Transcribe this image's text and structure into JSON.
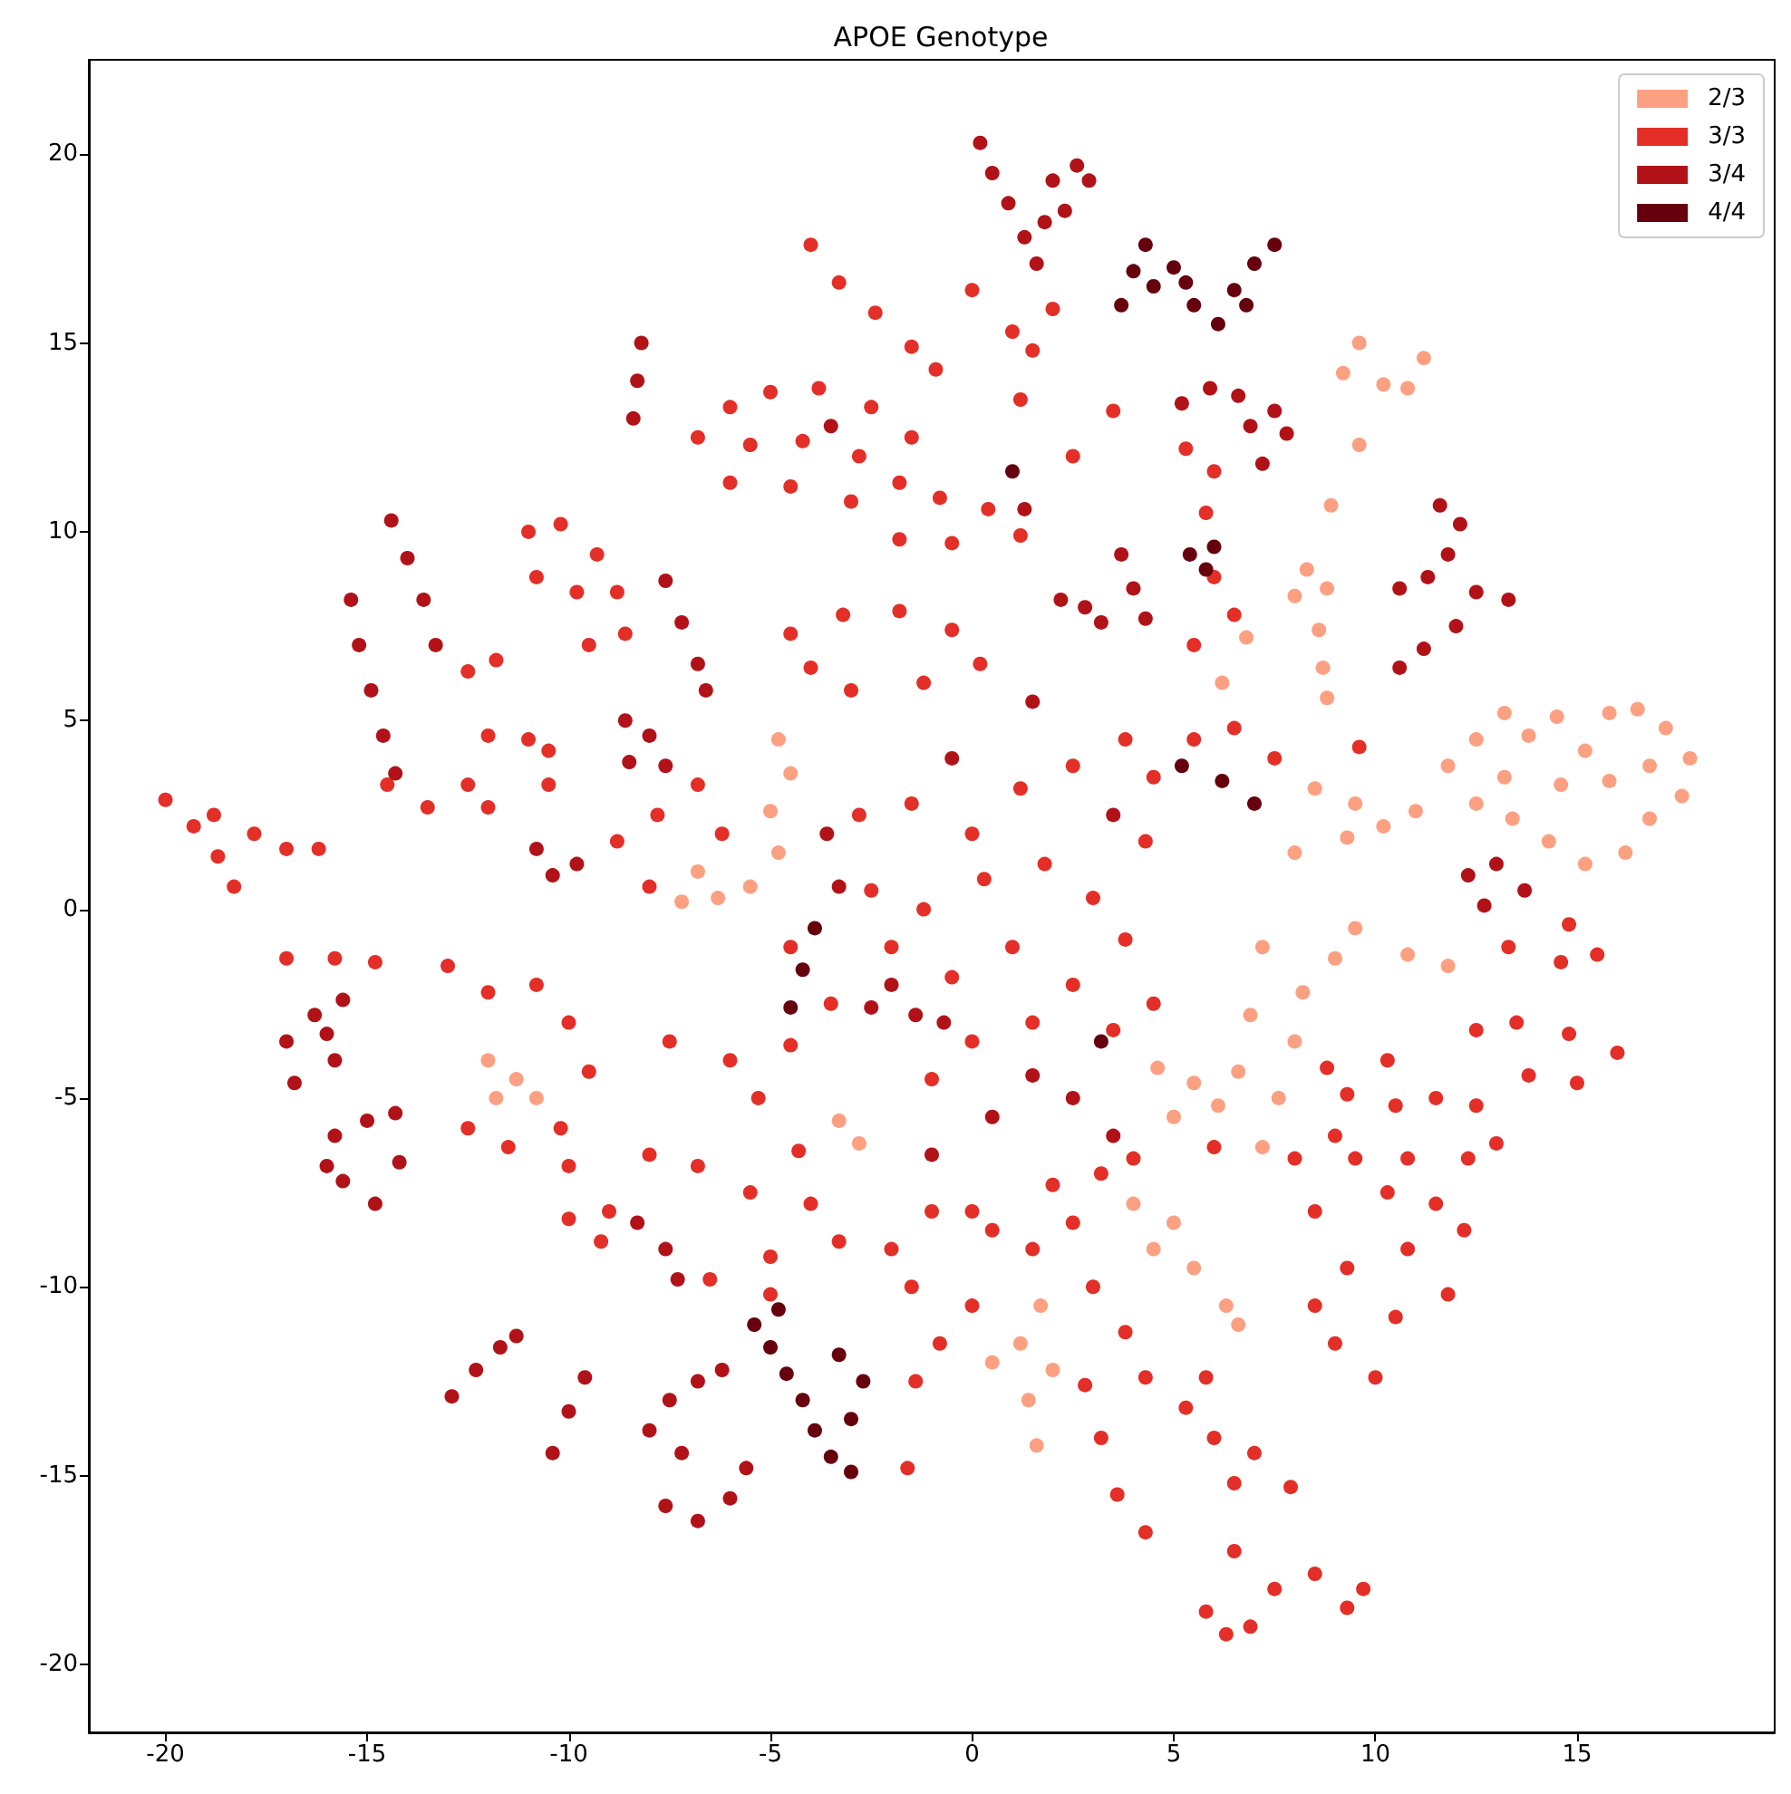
{
  "chart_data": {
    "type": "scatter",
    "title": "APOE Genotype",
    "xlim": [
      -21.9,
      19.9
    ],
    "ylim": [
      -21.8,
      22.5
    ],
    "xticks": [
      -20,
      -15,
      -10,
      -5,
      0,
      5,
      10,
      15
    ],
    "yticks": [
      -20,
      -15,
      -10,
      -5,
      0,
      5,
      10,
      15,
      20
    ],
    "grid": false,
    "legend": "top right",
    "marker": "circle",
    "series": [
      {
        "name": "2/3",
        "color": "#fca082",
        "x": [
          11.8,
          12.5,
          13.2,
          13.8,
          14.5,
          15.2,
          15.8,
          16.5,
          17.2,
          17.8,
          17.6,
          16.8,
          16.2,
          15.2,
          14.3,
          13.4,
          12.5,
          14.6,
          15.8,
          13.2,
          16.8,
          11.0,
          10.2,
          9.3,
          9.6,
          9.2,
          10.2,
          11.2,
          10.8,
          9.6,
          8.9,
          8.3,
          8.8,
          8.0,
          8.6,
          8.7,
          8.8,
          6.8,
          6.2,
          8.5,
          9.5,
          8.0,
          9.5,
          10.8,
          11.8,
          9.0,
          8.2,
          8.0,
          7.6,
          7.2,
          7.2,
          6.9,
          6.6,
          4.6,
          5.5,
          5.0,
          6.1,
          4.0,
          5.0,
          5.5,
          6.3,
          6.6,
          4.5,
          1.7,
          1.2,
          0.5,
          1.4,
          1.6,
          2.0,
          -4.8,
          -4.5,
          -5.0,
          -4.8,
          -5.5,
          -6.8,
          -6.3,
          -7.2,
          -12.0,
          -11.3,
          -10.8,
          -11.8,
          -3.3,
          -2.8
        ],
        "values": [
          3.8,
          4.5,
          5.2,
          4.6,
          5.1,
          4.2,
          5.2,
          5.3,
          4.8,
          4.0,
          3.0,
          2.4,
          1.5,
          1.2,
          1.8,
          2.4,
          2.8,
          3.3,
          3.4,
          3.5,
          3.8,
          2.6,
          2.2,
          1.9,
          15.0,
          14.2,
          13.9,
          14.6,
          13.8,
          12.3,
          10.7,
          9.0,
          8.5,
          8.3,
          7.4,
          6.4,
          5.6,
          7.2,
          6.0,
          3.2,
          2.8,
          1.5,
          -0.5,
          -1.2,
          -1.5,
          -1.3,
          -2.2,
          -3.5,
          -5.0,
          -6.3,
          -1.0,
          -2.8,
          -4.3,
          -4.2,
          -4.6,
          -5.5,
          -5.2,
          -7.8,
          -8.3,
          -9.5,
          -10.5,
          -11.0,
          -9.0,
          -10.5,
          -11.5,
          -12.0,
          -13.0,
          -14.2,
          -12.2,
          4.5,
          3.6,
          2.6,
          1.5,
          0.6,
          1.0,
          0.3,
          0.2,
          -4.0,
          -4.5,
          -5.0,
          -5.0,
          -5.6,
          -6.2
        ]
      },
      {
        "name": "3/3",
        "color": "#e32f27",
        "x": [
          -4.0,
          -3.3,
          -2.4,
          -1.5,
          -0.9,
          0.0,
          1.0,
          2.0,
          1.5,
          -6.8,
          -6.0,
          -5.0,
          -3.8,
          -2.5,
          -1.5,
          -1.8,
          -3.0,
          -4.5,
          -6.0,
          -4.2,
          -2.8,
          -5.5,
          -0.8,
          0.4,
          1.2,
          -0.5,
          -1.8,
          -4.5,
          -3.2,
          -1.8,
          -0.5,
          0.2,
          -1.2,
          -3.0,
          -4.0,
          -11.0,
          -10.2,
          -9.3,
          -8.8,
          -9.8,
          -10.8,
          -8.6,
          -9.5,
          -12.5,
          -11.8,
          -12.0,
          -11.0,
          -10.5,
          -14.5,
          -12.5,
          -10.5,
          -13.5,
          -12.0,
          -20.0,
          -19.3,
          -18.7,
          -18.3,
          -17.8,
          -17.0,
          -16.2,
          -18.8,
          -17.0,
          -15.8,
          -14.8,
          -13.0,
          -12.0,
          -10.8,
          -10.0,
          -9.5,
          -10.2,
          -11.5,
          -10.0,
          -12.5,
          -8.8,
          -7.8,
          -6.8,
          -6.2,
          -8.0,
          -7.5,
          -6.0,
          -4.5,
          -5.3,
          -9.0,
          -8.0,
          -6.8,
          -5.5,
          -4.0,
          -3.3,
          -5.0,
          -6.5,
          -4.3,
          -10.0,
          -9.2,
          -1.4,
          -1.6,
          -5.0,
          -2.8,
          -1.5,
          0.0,
          1.2,
          2.5,
          3.8,
          -2.5,
          -1.2,
          0.3,
          1.8,
          3.0,
          4.3,
          -2.0,
          -0.5,
          1.0,
          2.5,
          3.8,
          0.0,
          1.5,
          3.5,
          4.5,
          -1.0,
          4.5,
          5.5,
          6.5,
          7.5,
          9.6,
          6.0,
          6.5,
          5.5,
          5.3,
          6.0,
          5.8,
          1.2,
          3.5,
          2.5,
          9.3,
          8.8,
          10.3,
          10.5,
          9.0,
          11.5,
          12.5,
          13.5,
          14.8,
          16.0,
          15.0,
          13.8,
          12.5,
          13.0,
          12.3,
          14.8,
          15.5,
          14.6,
          13.3,
          8.5,
          9.3,
          8.5,
          9.0,
          10.0,
          10.5,
          10.8,
          11.5,
          12.2,
          11.8,
          10.3,
          -2.0,
          -1.0,
          0.5,
          1.5,
          2.5,
          3.2,
          -1.5,
          0.0,
          -0.8,
          3.0,
          3.8,
          4.3,
          2.8,
          3.2,
          3.6,
          4.3,
          5.3,
          6.0,
          7.0,
          7.9,
          6.5,
          5.8,
          6.3,
          6.9,
          5.8,
          7.5,
          8.5,
          9.3,
          9.7,
          6.5,
          0.0,
          2.0,
          4.0,
          6.0,
          8.0,
          9.5,
          10.8,
          -3.5,
          -4.5
        ],
        "values": [
          17.6,
          16.6,
          15.8,
          14.9,
          14.3,
          16.4,
          15.3,
          15.9,
          14.8,
          12.5,
          13.3,
          13.7,
          13.8,
          13.3,
          12.5,
          11.3,
          10.8,
          11.2,
          11.3,
          12.4,
          12.0,
          12.3,
          10.9,
          10.6,
          9.9,
          9.7,
          9.8,
          7.3,
          7.8,
          7.9,
          7.4,
          6.5,
          6.0,
          5.8,
          6.4,
          10.0,
          10.2,
          9.4,
          8.4,
          8.4,
          8.8,
          7.3,
          7.0,
          6.3,
          6.6,
          4.6,
          4.5,
          4.2,
          3.3,
          3.3,
          3.3,
          2.7,
          2.7,
          2.9,
          2.2,
          1.4,
          0.6,
          2.0,
          1.6,
          1.6,
          2.5,
          -1.3,
          -1.3,
          -1.4,
          -1.5,
          -2.2,
          -2.0,
          -3.0,
          -4.3,
          -5.8,
          -6.3,
          -6.8,
          -5.8,
          1.8,
          2.5,
          3.3,
          2.0,
          0.6,
          -3.5,
          -4.0,
          -3.6,
          -5.0,
          -8.0,
          -6.5,
          -6.8,
          -7.5,
          -7.8,
          -8.8,
          -9.2,
          -9.8,
          -6.4,
          -8.2,
          -8.8,
          -12.5,
          -14.8,
          -10.2,
          2.5,
          2.8,
          2.0,
          3.2,
          3.8,
          4.5,
          0.5,
          0.0,
          0.8,
          1.2,
          0.3,
          1.8,
          -1.0,
          -1.8,
          -1.0,
          -2.0,
          -0.8,
          -3.5,
          -3.0,
          -3.2,
          -2.5,
          -4.5,
          3.5,
          4.5,
          4.8,
          4.0,
          4.3,
          8.8,
          7.8,
          7.0,
          12.2,
          11.6,
          10.5,
          13.5,
          13.2,
          12.0,
          -4.9,
          -4.2,
          -4.0,
          -5.2,
          -6.0,
          -5.0,
          -3.2,
          -3.0,
          -3.3,
          -3.8,
          -4.6,
          -4.4,
          -5.2,
          -6.2,
          -6.6,
          -0.4,
          -1.2,
          -1.4,
          -1.0,
          -8.0,
          -9.5,
          -10.5,
          -11.5,
          -12.4,
          -10.8,
          -9.0,
          -7.8,
          -8.5,
          -10.2,
          -7.5,
          -9.0,
          -8.0,
          -8.5,
          -9.0,
          -8.3,
          -7.0,
          -10.0,
          -10.5,
          -11.5,
          -10.0,
          -11.2,
          -12.4,
          -12.6,
          -14.0,
          -15.5,
          -16.5,
          -13.2,
          -14.0,
          -14.4,
          -15.3,
          -15.2,
          -12.4,
          -19.2,
          -19.0,
          -18.6,
          -18.0,
          -17.6,
          -18.5,
          -18.0,
          -17.0,
          -8.0,
          -7.3,
          -6.6,
          -6.3,
          -6.6,
          -6.6,
          -6.6,
          -2.5,
          -1.0
        ]
      },
      {
        "name": "3/4",
        "color": "#b11218",
        "x": [
          0.2,
          0.5,
          0.9,
          1.3,
          1.6,
          2.0,
          2.6,
          2.9,
          2.3,
          1.8,
          -8.2,
          -8.3,
          -8.4,
          5.2,
          5.9,
          6.6,
          6.9,
          7.5,
          7.8,
          7.2,
          11.6,
          12.1,
          11.8,
          11.3,
          10.6,
          12.5,
          13.3,
          12.0,
          11.2,
          10.6,
          12.3,
          13.0,
          13.7,
          12.7,
          -14.4,
          -14.0,
          -13.6,
          -13.3,
          -15.4,
          -15.2,
          -14.9,
          -14.6,
          -14.3,
          -7.6,
          -7.2,
          -6.8,
          -6.6,
          -8.6,
          -8.0,
          -7.6,
          -8.5,
          -10.8,
          -9.8,
          -10.4,
          -3.6,
          -3.3,
          -17.0,
          -16.3,
          -15.6,
          -16.8,
          -15.8,
          -16.0,
          -15.8,
          -15.0,
          -14.3,
          -15.6,
          -14.8,
          -14.2,
          -16.0,
          -12.9,
          -12.3,
          -11.7,
          -11.3,
          -10.4,
          -10.0,
          -9.6,
          -8.0,
          -7.5,
          -6.8,
          -6.2,
          -7.2,
          -7.6,
          -6.8,
          -6.0,
          -5.6,
          -8.3,
          -7.6,
          -7.3,
          -2.0,
          -1.4,
          -0.7,
          -2.5,
          3.7,
          4.0,
          4.3,
          2.2,
          3.2,
          2.8,
          2.5,
          1.5,
          3.5,
          -0.5,
          1.5,
          3.5,
          -1.0,
          0.5,
          1.3,
          -3.5
        ],
        "values": [
          20.3,
          19.5,
          18.7,
          17.8,
          17.1,
          19.3,
          19.7,
          19.3,
          18.5,
          18.2,
          15.0,
          14.0,
          13.0,
          13.4,
          13.8,
          13.6,
          12.8,
          13.2,
          12.6,
          11.8,
          10.7,
          10.2,
          9.4,
          8.8,
          8.5,
          8.4,
          8.2,
          7.5,
          6.9,
          6.4,
          0.9,
          1.2,
          0.5,
          0.1,
          10.3,
          9.3,
          8.2,
          7.0,
          8.2,
          7.0,
          5.8,
          4.6,
          3.6,
          8.7,
          7.6,
          6.5,
          5.8,
          5.0,
          4.6,
          3.8,
          3.9,
          1.6,
          1.2,
          0.9,
          2.0,
          0.6,
          -3.5,
          -2.8,
          -2.4,
          -4.6,
          -4.0,
          -3.3,
          -6.0,
          -5.6,
          -5.4,
          -7.2,
          -7.8,
          -6.7,
          -6.8,
          -12.9,
          -12.2,
          -11.6,
          -11.3,
          -14.4,
          -13.3,
          -12.4,
          -13.8,
          -13.0,
          -12.5,
          -12.2,
          -14.4,
          -15.8,
          -16.2,
          -15.6,
          -14.8,
          -8.3,
          -9.0,
          -9.8,
          -2.0,
          -2.8,
          -3.0,
          -2.6,
          9.4,
          8.5,
          7.7,
          8.2,
          7.6,
          8.0,
          -5.0,
          -4.4,
          -6.0,
          4.0,
          5.5,
          2.5,
          -6.5,
          -5.5,
          10.6,
          12.8
        ]
      },
      {
        "name": "4/4",
        "color": "#67000d",
        "x": [
          3.7,
          4.0,
          4.3,
          4.5,
          5.3,
          5.5,
          6.1,
          6.5,
          7.0,
          7.5,
          6.8,
          5.0,
          5.4,
          5.8,
          6.0,
          -5.4,
          -5.0,
          -4.6,
          -4.2,
          -3.9,
          -3.5,
          -3.0,
          -3.0,
          -2.7,
          -3.3,
          -4.8,
          -3.9,
          -4.2,
          -4.5,
          5.2,
          6.2,
          7.0,
          3.2,
          1.0
        ],
        "values": [
          16.0,
          16.9,
          17.6,
          16.5,
          16.6,
          16.0,
          15.5,
          16.4,
          17.1,
          17.6,
          16.0,
          17.0,
          9.4,
          9.0,
          9.6,
          -11.0,
          -11.6,
          -12.3,
          -13.0,
          -13.8,
          -14.5,
          -14.9,
          -13.5,
          -12.5,
          -11.8,
          -10.6,
          -0.5,
          -1.6,
          -2.6,
          3.8,
          3.4,
          2.8,
          -3.5,
          11.6
        ]
      }
    ]
  }
}
